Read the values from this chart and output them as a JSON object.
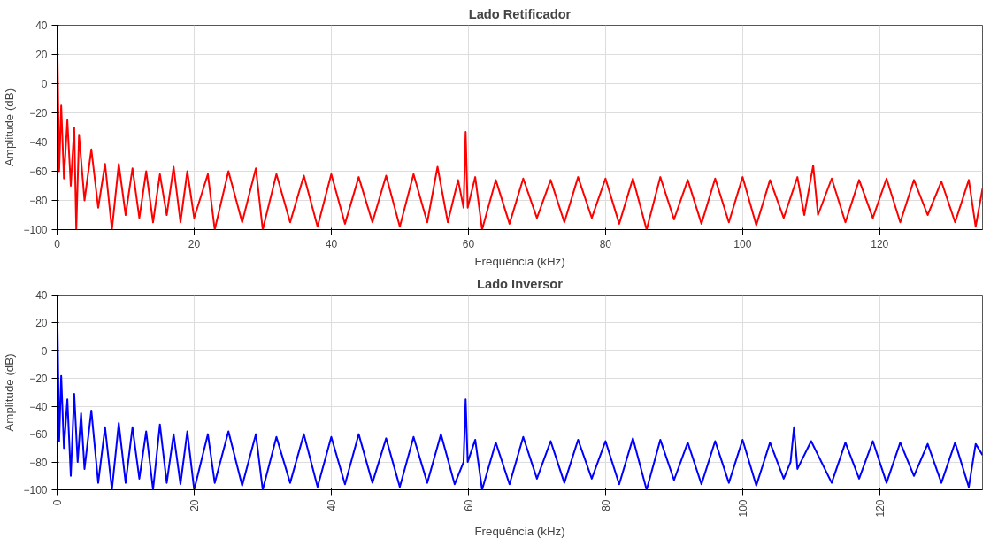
{
  "chart_data": [
    {
      "type": "line",
      "title": "Lado Retificador",
      "xlabel": "Frequência (kHz)",
      "ylabel": "Amplitude (dB)",
      "xlim": [
        0,
        135
      ],
      "ylim": [
        -100,
        40
      ],
      "xticks": [
        0,
        20,
        40,
        60,
        80,
        100,
        120
      ],
      "yticks": [
        -100,
        -80,
        -60,
        -40,
        -20,
        0,
        20,
        40
      ],
      "grid": true,
      "marker": "none",
      "line_style": "solid",
      "series": [
        {
          "color": "#ff0000",
          "x": [
            0,
            0.3,
            0.6,
            1,
            1.5,
            2,
            2.5,
            2.8,
            3.2,
            4,
            5,
            6,
            7,
            8,
            9,
            10,
            11,
            12,
            13,
            14,
            15,
            16,
            17,
            18,
            19,
            20,
            22,
            23,
            25,
            27,
            29,
            30,
            32,
            34,
            36,
            38,
            40,
            42,
            44,
            46,
            48,
            50,
            52,
            54,
            55.5,
            57,
            58.5,
            59.3,
            59.6,
            59.9,
            61,
            62,
            64,
            66,
            68,
            70,
            72,
            74,
            76,
            78,
            80,
            82,
            84,
            86,
            88,
            90,
            92,
            94,
            96,
            98,
            100,
            102,
            104,
            106,
            108,
            109,
            110.3,
            111,
            113,
            115,
            117,
            119,
            121,
            123,
            125,
            127,
            129,
            131,
            133,
            134,
            135
          ],
          "values": [
            40,
            -60,
            -15,
            -65,
            -25,
            -70,
            -30,
            -100,
            -35,
            -80,
            -45,
            -85,
            -55,
            -100,
            -55,
            -90,
            -58,
            -92,
            -60,
            -95,
            -62,
            -90,
            -57,
            -95,
            -60,
            -92,
            -62,
            -100,
            -60,
            -95,
            -58,
            -100,
            -62,
            -95,
            -63,
            -98,
            -62,
            -96,
            -64,
            -95,
            -63,
            -98,
            -62,
            -95,
            -57,
            -95,
            -66,
            -85,
            -33,
            -85,
            -64,
            -100,
            -66,
            -96,
            -65,
            -92,
            -66,
            -95,
            -64,
            -92,
            -65,
            -96,
            -65,
            -100,
            -64,
            -93,
            -66,
            -96,
            -65,
            -95,
            -64,
            -97,
            -66,
            -92,
            -64,
            -90,
            -56,
            -90,
            -65,
            -95,
            -66,
            -92,
            -65,
            -95,
            -66,
            -90,
            -67,
            -95,
            -66,
            -98,
            -72
          ]
        }
      ]
    },
    {
      "type": "line",
      "title": "Lado Inversor",
      "xlabel": "Frequência (kHz)",
      "ylabel": "Amplitude (dB)",
      "xlim": [
        0,
        135
      ],
      "ylim": [
        -100,
        40
      ],
      "xticks": [
        0,
        20,
        40,
        60,
        80,
        100,
        120
      ],
      "yticks": [
        -100,
        -80,
        -60,
        -40,
        -20,
        0,
        20,
        40
      ],
      "grid": true,
      "marker": "none",
      "line_style": "solid",
      "series": [
        {
          "color": "#0000ff",
          "x": [
            0,
            0.3,
            0.6,
            1,
            1.5,
            2,
            2.5,
            3,
            3.5,
            4,
            5,
            6,
            7,
            8,
            9,
            10,
            11,
            12,
            13,
            14,
            15,
            16,
            17,
            18,
            19,
            20,
            22,
            23,
            25,
            27,
            29,
            30,
            32,
            34,
            36,
            38,
            40,
            42,
            44,
            46,
            48,
            50,
            52,
            54,
            56,
            58,
            59.3,
            59.6,
            59.9,
            61,
            62,
            64,
            66,
            68,
            70,
            72,
            74,
            76,
            78,
            80,
            82,
            84,
            86,
            88,
            90,
            92,
            94,
            96,
            98,
            100,
            102,
            104,
            106,
            107,
            107.5,
            108,
            110,
            113,
            115,
            117,
            119,
            121,
            123,
            125,
            127,
            129,
            131,
            133,
            134,
            135
          ],
          "values": [
            40,
            -65,
            -18,
            -70,
            -35,
            -90,
            -31,
            -80,
            -45,
            -85,
            -43,
            -95,
            -55,
            -100,
            -52,
            -95,
            -55,
            -92,
            -58,
            -100,
            -53,
            -95,
            -60,
            -96,
            -58,
            -100,
            -60,
            -95,
            -58,
            -97,
            -60,
            -100,
            -62,
            -95,
            -60,
            -98,
            -62,
            -96,
            -60,
            -95,
            -63,
            -98,
            -62,
            -95,
            -60,
            -96,
            -80,
            -35,
            -80,
            -64,
            -100,
            -66,
            -96,
            -62,
            -92,
            -65,
            -95,
            -64,
            -92,
            -65,
            -96,
            -63,
            -100,
            -64,
            -93,
            -66,
            -96,
            -65,
            -95,
            -64,
            -97,
            -66,
            -92,
            -80,
            -55,
            -85,
            -65,
            -95,
            -66,
            -92,
            -65,
            -95,
            -66,
            -90,
            -67,
            -95,
            -66,
            -98,
            -67,
            -75
          ]
        }
      ]
    }
  ]
}
